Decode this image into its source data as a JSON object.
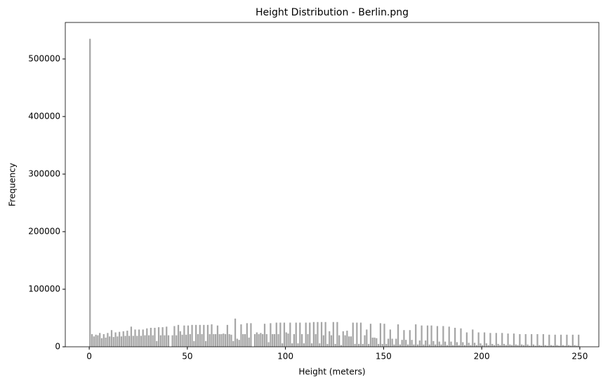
{
  "chart_data": {
    "type": "histogram",
    "title": "Height Distribution - Berlin.png",
    "x_label": "Height (meters)",
    "y_label": "Frequency",
    "color": "#a6a6a6",
    "xlim": [
      -12.2,
      259.7
    ],
    "ylim": [
      0,
      563400
    ],
    "xticks": [
      0,
      50,
      100,
      150,
      200,
      250
    ],
    "yticks": [
      0,
      100000,
      200000,
      300000,
      400000,
      500000
    ],
    "bins": [
      0,
      1,
      2,
      3,
      4,
      5,
      6,
      7,
      8,
      9,
      10,
      11,
      12,
      13,
      14,
      15,
      16,
      17,
      18,
      19,
      20,
      21,
      22,
      23,
      24,
      25,
      26,
      27,
      28,
      29,
      30,
      31,
      32,
      33,
      34,
      35,
      36,
      37,
      38,
      39,
      40,
      41,
      42,
      43,
      44,
      45,
      46,
      47,
      48,
      49,
      50,
      51,
      52,
      53,
      54,
      55,
      56,
      57,
      58,
      59,
      60,
      61,
      62,
      63,
      64,
      65,
      66,
      67,
      68,
      69,
      70,
      71,
      72,
      73,
      74,
      75,
      76,
      77,
      78,
      79,
      80,
      81,
      82,
      83,
      84,
      85,
      86,
      87,
      88,
      89,
      90,
      91,
      92,
      93,
      94,
      95,
      96,
      97,
      98,
      99,
      100,
      101,
      102,
      103,
      104,
      105,
      106,
      107,
      108,
      109,
      110,
      111,
      112,
      113,
      114,
      115,
      116,
      117,
      118,
      119,
      120,
      121,
      122,
      123,
      124,
      125,
      126,
      127,
      128,
      129,
      130,
      131,
      132,
      133,
      134,
      135,
      136,
      137,
      138,
      139,
      140,
      141,
      142,
      143,
      144,
      145,
      146,
      147,
      148,
      149,
      150,
      151,
      152,
      153,
      154,
      155,
      156,
      157,
      158,
      159,
      160,
      161,
      162,
      163,
      164,
      165,
      166,
      167,
      168,
      169,
      170,
      171,
      172,
      173,
      174,
      175,
      176,
      177,
      178,
      179,
      180,
      181,
      182,
      183,
      184,
      185,
      186,
      187,
      188,
      189,
      190,
      191,
      192,
      193,
      194,
      195,
      196,
      197,
      198,
      199,
      200,
      201,
      202,
      203,
      204,
      205,
      206,
      207,
      208,
      209,
      210,
      211,
      212,
      213,
      214,
      215,
      216,
      217,
      218,
      219,
      220,
      221,
      222,
      223,
      224,
      225,
      226,
      227,
      228,
      229,
      230,
      231,
      232,
      233,
      234,
      235,
      236,
      237,
      238,
      239,
      240,
      241,
      242,
      243,
      244,
      245,
      246,
      247,
      248,
      249,
      250
    ],
    "values": [
      535000,
      22000,
      18000,
      21000,
      20000,
      24000,
      15000,
      22000,
      16000,
      24000,
      18000,
      29000,
      17000,
      25000,
      18000,
      26000,
      18000,
      27000,
      19000,
      28000,
      19000,
      35000,
      19000,
      30000,
      19000,
      30000,
      19000,
      30000,
      20000,
      32000,
      20000,
      33000,
      20000,
      33000,
      10000,
      34000,
      20000,
      34000,
      20000,
      35000,
      20000,
      0,
      20000,
      36000,
      20000,
      38000,
      27000,
      21000,
      37000,
      21000,
      37000,
      22000,
      38000,
      10000,
      38000,
      22000,
      38000,
      22000,
      38000,
      10000,
      38000,
      22000,
      39000,
      22000,
      22000,
      37000,
      22000,
      22000,
      23000,
      22000,
      38000,
      22000,
      21000,
      10000,
      49000,
      14000,
      12000,
      39000,
      22000,
      22000,
      41000,
      16000,
      41000,
      0,
      22000,
      25000,
      22000,
      24000,
      22000,
      40000,
      22000,
      8000,
      41000,
      22000,
      22000,
      42000,
      22000,
      42000,
      6000,
      42000,
      25000,
      23000,
      42000,
      6000,
      22000,
      42000,
      6000,
      42000,
      22000,
      6000,
      42000,
      22000,
      42000,
      6000,
      43000,
      22000,
      43000,
      6000,
      43000,
      20000,
      43000,
      5000,
      27000,
      20000,
      43000,
      5000,
      43000,
      20000,
      3000,
      27000,
      20000,
      28000,
      18000,
      18000,
      42000,
      5000,
      42000,
      5000,
      42000,
      5000,
      20000,
      30000,
      5000,
      40000,
      16000,
      16000,
      15000,
      5000,
      41000,
      5000,
      40000,
      5000,
      14000,
      30000,
      14000,
      4000,
      14000,
      39000,
      4000,
      12000,
      29000,
      12000,
      4000,
      29000,
      12000,
      4000,
      39000,
      4000,
      11000,
      37000,
      4000,
      11000,
      37000,
      4000,
      37000,
      10000,
      4000,
      36000,
      9000,
      4000,
      36000,
      9000,
      3000,
      35000,
      9000,
      3000,
      33000,
      8000,
      3000,
      32000,
      8000,
      3000,
      25000,
      7000,
      3000,
      30000,
      7000,
      3000,
      25000,
      6000,
      3000,
      25000,
      6000,
      3000,
      24000,
      5000,
      3000,
      24000,
      5000,
      3000,
      24000,
      5000,
      3000,
      23000,
      4000,
      3000,
      23000,
      4000,
      3000,
      22000,
      4000,
      3000,
      22000,
      4000,
      2000,
      22000,
      4000,
      2000,
      22000,
      3000,
      2000,
      22000,
      3000,
      2000,
      21000,
      3000,
      2000,
      21000,
      3000,
      2000,
      21000,
      3000,
      2000,
      21000,
      3000,
      2000,
      21000,
      3000,
      2000,
      21000
    ]
  }
}
